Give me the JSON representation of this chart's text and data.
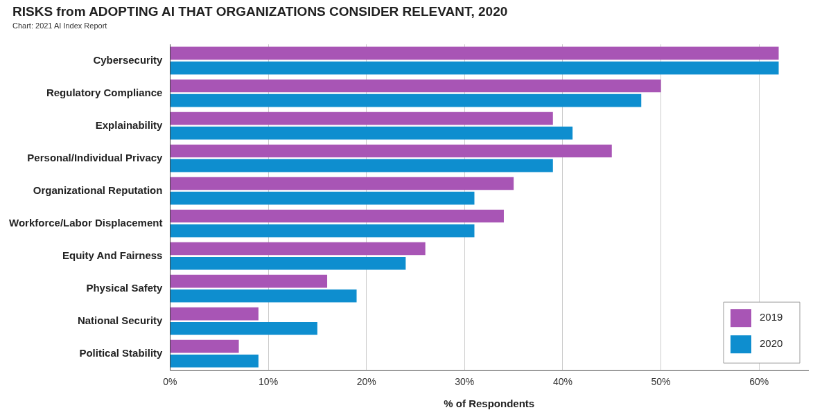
{
  "chart_data": {
    "type": "bar",
    "orientation": "horizontal",
    "title": "RISKS from ADOPTING AI THAT ORGANIZATIONS CONSIDER RELEVANT, 2020",
    "annotations": [
      "Chart: 2021 AI Index Report"
    ],
    "xlabel": "% of Respondents",
    "categories": [
      "Cybersecurity",
      "Regulatory Compliance",
      "Explainability",
      "Personal/Individual Privacy",
      "Organizational Reputation",
      "Workforce/Labor Displacement",
      "Equity And Fairness",
      "Physical Safety",
      "National Security",
      "Political Stability"
    ],
    "series": [
      {
        "name": "2019",
        "color": "#a855b5",
        "values": [
          62,
          50,
          39,
          45,
          35,
          34,
          26,
          16,
          9,
          7
        ]
      },
      {
        "name": "2020",
        "color": "#0e8ecf",
        "values": [
          62,
          48,
          41,
          39,
          31,
          31,
          24,
          19,
          15,
          9
        ]
      }
    ],
    "xlim": [
      0,
      65
    ],
    "xticks": [
      {
        "value": 0,
        "label": "0%"
      },
      {
        "value": 10,
        "label": "10%"
      },
      {
        "value": 20,
        "label": "20%"
      },
      {
        "value": 30,
        "label": "30%"
      },
      {
        "value": 40,
        "label": "40%"
      },
      {
        "value": 50,
        "label": "50%"
      },
      {
        "value": 60,
        "label": "60%"
      }
    ],
    "grid": "x",
    "legend": "bottom right"
  }
}
